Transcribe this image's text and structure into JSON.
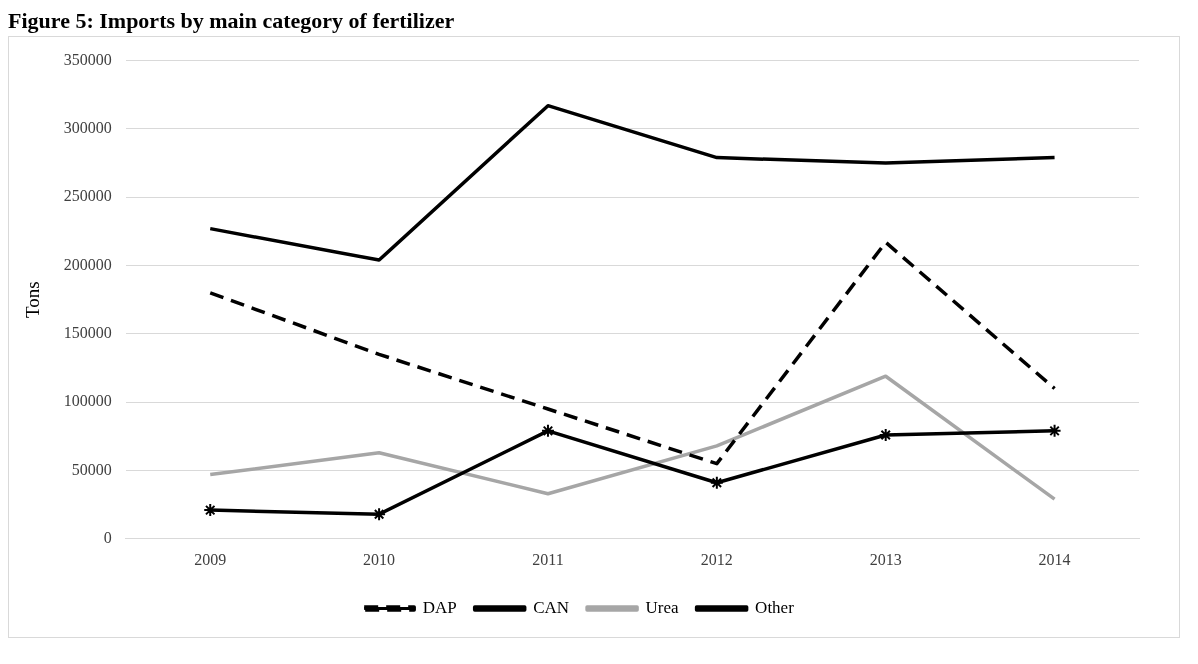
{
  "chart_data": {
    "type": "line",
    "title": "Figure 5: Imports by main category of fertilizer",
    "ylabel": "Tons",
    "categories": [
      "2009",
      "2010",
      "2011",
      "2012",
      "2013",
      "2014"
    ],
    "series": [
      {
        "name": "DAP",
        "color": "#000000",
        "line_style": "dashed",
        "marker": "none",
        "values": [
          180000,
          135000,
          95000,
          55000,
          217000,
          110000
        ]
      },
      {
        "name": "CAN",
        "color": "#000000",
        "line_style": "solid",
        "marker": "cross",
        "values": [
          21000,
          18000,
          79000,
          41000,
          76000,
          79000
        ]
      },
      {
        "name": "Urea",
        "color": "#a6a6a6",
        "line_style": "solid",
        "marker": "none",
        "values": [
          47000,
          63000,
          33000,
          68000,
          119000,
          29000
        ]
      },
      {
        "name": "Other",
        "color": "#000000",
        "line_style": "solid",
        "marker": "none",
        "values": [
          227000,
          204000,
          317000,
          279000,
          275000,
          279000
        ]
      }
    ],
    "ylim": [
      0,
      350000
    ],
    "yticks": [
      0,
      50000,
      100000,
      150000,
      200000,
      250000,
      300000,
      350000
    ],
    "grid": "y",
    "legend": "bottom"
  }
}
